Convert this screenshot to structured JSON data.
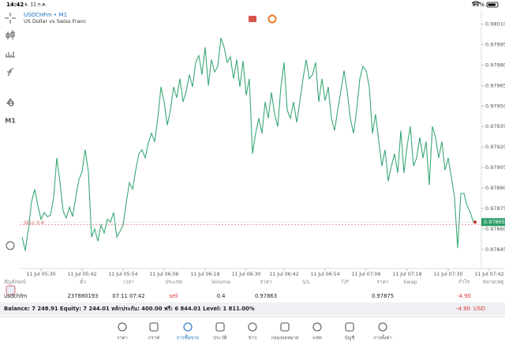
{
  "status_bar": {
    "time": "14:42",
    "date": "จ. 11 ก.ค.",
    "battery": "83%"
  },
  "toolbar": {
    "timeframe": "M1"
  },
  "chart_data": {
    "type": "line",
    "title": "USDCHFm • M1",
    "subtitle": "US Dollar vs Swiss Franc",
    "categories": [
      null,
      null,
      null,
      null,
      null,
      null,
      "11 Jul 05:30",
      null,
      null,
      null,
      null,
      null,
      null,
      null,
      null,
      null,
      null,
      null,
      null,
      "11 Jul 05:42",
      null,
      null,
      null,
      null,
      null,
      null,
      null,
      null,
      null,
      null,
      null,
      null,
      "11 Jul 05:54",
      null,
      null,
      null,
      null,
      null,
      null,
      null,
      null,
      null,
      null,
      null,
      null,
      "11 Jul 06:06",
      null,
      null,
      null,
      null,
      null,
      null,
      null,
      null,
      null,
      null,
      null,
      null,
      "11 Jul 06:18",
      null,
      null,
      null,
      null,
      null,
      null,
      null,
      null,
      null,
      null,
      null,
      null,
      "11 Jul 06:30",
      null,
      null,
      null,
      null,
      null,
      null,
      null,
      null,
      null,
      null,
      null,
      "11 Jul 06:42",
      null,
      null,
      null,
      null,
      null,
      null,
      null,
      null,
      null,
      null,
      null,
      null,
      "11 Jul 06:54",
      null,
      null,
      null,
      null,
      null,
      null,
      null,
      null,
      null,
      null,
      null,
      null,
      "11 Jul 07:06",
      null,
      null,
      null,
      null,
      null,
      null,
      null,
      null,
      null,
      null,
      null,
      null,
      "11 Jul 07:18",
      null,
      null,
      null,
      null,
      null,
      null,
      null,
      null,
      null,
      null,
      null,
      null,
      "11 Jul 07:30",
      null,
      null,
      null,
      null,
      null,
      null,
      null,
      null,
      null,
      null,
      null,
      null,
      "11 Jul 07:42"
    ],
    "series": [
      {
        "name": "USDCHFm",
        "color": "#3aa876",
        "values": [
          0.97854,
          0.97844,
          0.9786,
          0.9788,
          0.97889,
          0.97877,
          0.97867,
          0.97872,
          0.97869,
          0.9787,
          0.97883,
          0.97912,
          0.97894,
          0.97873,
          0.97868,
          0.97876,
          0.97869,
          0.97883,
          0.97896,
          0.97902,
          0.97918,
          0.97902,
          0.97854,
          0.9786,
          0.97851,
          0.97863,
          0.97857,
          0.97867,
          0.97865,
          0.97872,
          0.97854,
          0.97858,
          0.97863,
          0.97879,
          0.97894,
          0.97889,
          0.97903,
          0.97915,
          0.97918,
          0.97912,
          0.97923,
          0.9793,
          0.97924,
          0.97941,
          0.97964,
          0.97953,
          0.97936,
          0.97947,
          0.97964,
          0.97956,
          0.9797,
          0.97953,
          0.97961,
          0.97973,
          0.97964,
          0.97982,
          0.97987,
          0.97973,
          0.97993,
          0.97965,
          0.97984,
          0.97975,
          0.97979,
          0.98,
          0.97993,
          0.97982,
          0.97986,
          0.9797,
          0.97984,
          0.97964,
          0.97983,
          0.97958,
          0.9797,
          0.97915,
          0.9793,
          0.97941,
          0.9793,
          0.97953,
          0.97941,
          0.9796,
          0.97944,
          0.97935,
          0.97964,
          0.97982,
          0.97947,
          0.97941,
          0.97953,
          0.97938,
          0.97953,
          0.9797,
          0.97984,
          0.9797,
          0.97973,
          0.97982,
          0.97953,
          0.9797,
          0.97954,
          0.97964,
          0.97941,
          0.97932,
          0.97947,
          0.97961,
          0.97976,
          0.97961,
          0.97941,
          0.9793,
          0.97947,
          0.9797,
          0.97979,
          0.97976,
          0.97964,
          0.9793,
          0.97944,
          0.97924,
          0.97906,
          0.97918,
          0.97895,
          0.97906,
          0.97915,
          0.97901,
          0.97932,
          0.97901,
          0.97921,
          0.97935,
          0.97906,
          0.97912,
          0.97927,
          0.97912,
          0.97924,
          0.97892,
          0.97935,
          0.97927,
          0.97912,
          0.97924,
          0.97903,
          0.97912,
          0.97898,
          0.97883,
          0.97846,
          0.97886,
          0.97886,
          0.97877,
          0.97872,
          0.97865,
          null,
          null,
          null,
          null,
          null
        ]
      }
    ],
    "ylim": [
      0.97831,
      0.98019
    ],
    "yticks": [
      {
        "value": 0.9801,
        "label": "0.98010"
      },
      0.97995,
      {
        "value": 0.9798,
        "label": "0.97980"
      },
      0.97965,
      {
        "value": 0.9795,
        "label": "0.97950"
      },
      0.97935,
      {
        "value": 0.9792,
        "label": "0.97920"
      },
      0.97905,
      {
        "value": 0.9789,
        "label": "0.97890"
      },
      0.97875,
      {
        "value": 0.9786,
        "label": "0.97860"
      },
      0.97845
    ],
    "current_price": 0.97865,
    "order_line": {
      "label": "SELL 0.4",
      "price": 0.97863
    }
  },
  "table": {
    "header": [
      "สัญลักษณ์",
      "ตั๋ว",
      "เวลา",
      "ประเภท",
      "Volume",
      "ราคา",
      "S/L",
      "T/P",
      "ราคา",
      "Swap",
      "กำไร",
      "หมายเหตุ"
    ],
    "rows": [
      [
        "usdchfm",
        "237880193",
        "07.11 07:42",
        "sell",
        "0.4",
        "0.97863",
        null,
        null,
        "0.97875",
        null,
        "-4.90",
        null
      ]
    ]
  },
  "summary": {
    "text": "Balance: 7 248.91 Equity: 7 244.01 หลักประกัน: 400.00 ฟรี: 6 844.01 Level: 1 811.00%",
    "profit": "-4.90",
    "currency": "USD"
  },
  "nav": {
    "items": [
      "ราคา",
      "กราฟ",
      "การซื้อขาย",
      "ประวัติ",
      "ข่าว",
      "กล่องจดหมาย",
      "แชท",
      "บัญชี",
      "การตั้งค่า"
    ],
    "active": 2
  }
}
